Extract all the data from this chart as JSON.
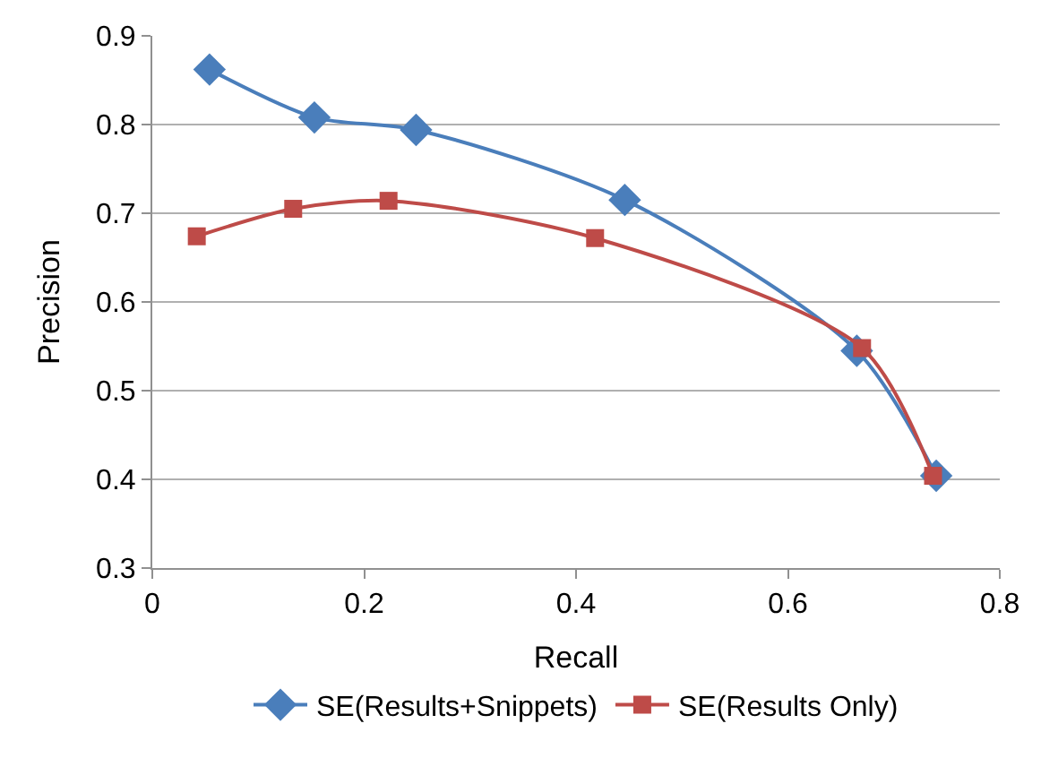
{
  "chart_data": {
    "type": "line",
    "xlabel": "Recall",
    "ylabel": "Precision",
    "xlim": [
      0,
      0.8
    ],
    "xticks": [
      0,
      0.2,
      0.4,
      0.6,
      0.8
    ],
    "ylim": [
      0.3,
      0.9
    ],
    "yticks": [
      0.3,
      0.4,
      0.5,
      0.6,
      0.7,
      0.8,
      0.9
    ],
    "grid": "y",
    "legend": "bottom",
    "series": [
      {
        "name": "SE(Results+Snippets)",
        "color": "#4a7ebb",
        "marker": "diamond",
        "x": [
          0.054,
          0.153,
          0.249,
          0.446,
          0.665,
          0.74
        ],
        "values": [
          0.862,
          0.808,
          0.794,
          0.715,
          0.545,
          0.404
        ]
      },
      {
        "name": "SE(Results Only)",
        "color": "#be4b48",
        "marker": "square",
        "x": [
          0.042,
          0.133,
          0.223,
          0.418,
          0.67,
          0.737
        ],
        "values": [
          0.674,
          0.705,
          0.714,
          0.672,
          0.548,
          0.404
        ]
      }
    ]
  }
}
